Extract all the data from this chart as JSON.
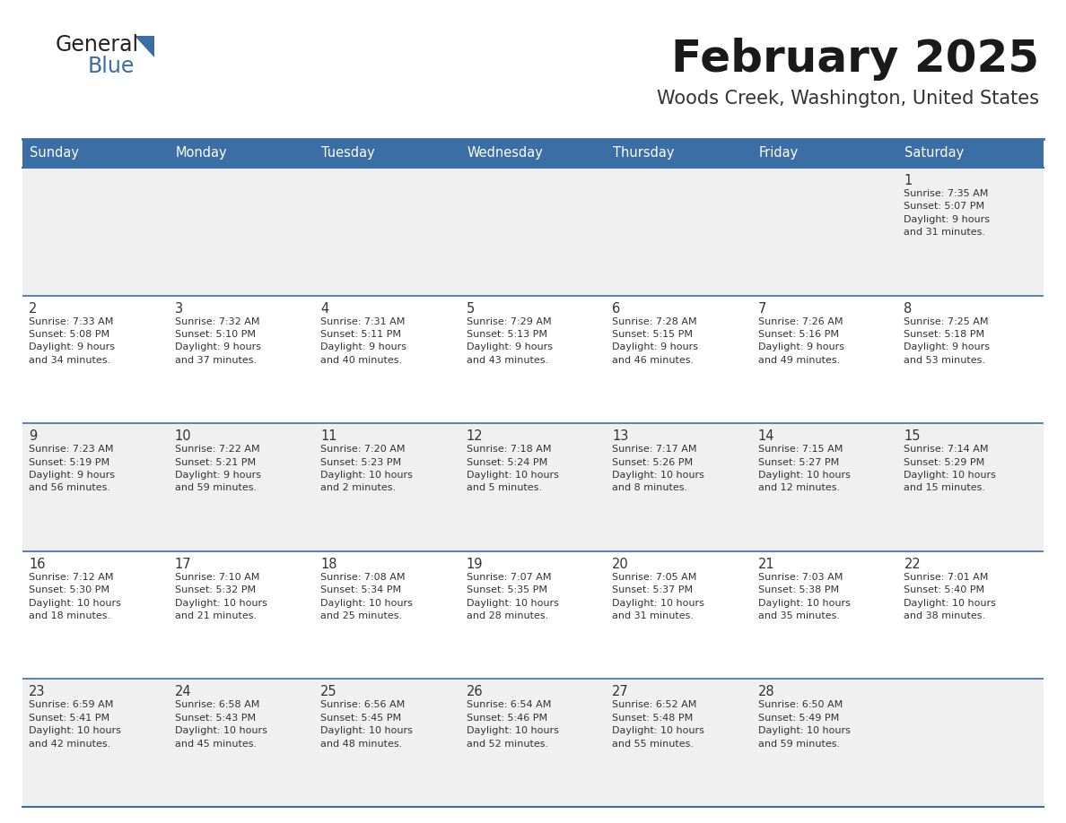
{
  "title": "February 2025",
  "subtitle": "Woods Creek, Washington, United States",
  "header_color": "#3a6ea5",
  "header_text_color": "#ffffff",
  "row_bg": [
    "#f0f0f0",
    "#ffffff",
    "#f0f0f0",
    "#ffffff",
    "#f0f0f0"
  ],
  "border_color": "#3a6ea5",
  "text_color": "#333333",
  "days_of_week": [
    "Sunday",
    "Monday",
    "Tuesday",
    "Wednesday",
    "Thursday",
    "Friday",
    "Saturday"
  ],
  "calendar_data": [
    [
      {
        "day": "",
        "info": ""
      },
      {
        "day": "",
        "info": ""
      },
      {
        "day": "",
        "info": ""
      },
      {
        "day": "",
        "info": ""
      },
      {
        "day": "",
        "info": ""
      },
      {
        "day": "",
        "info": ""
      },
      {
        "day": "1",
        "info": "Sunrise: 7:35 AM\nSunset: 5:07 PM\nDaylight: 9 hours\nand 31 minutes."
      }
    ],
    [
      {
        "day": "2",
        "info": "Sunrise: 7:33 AM\nSunset: 5:08 PM\nDaylight: 9 hours\nand 34 minutes."
      },
      {
        "day": "3",
        "info": "Sunrise: 7:32 AM\nSunset: 5:10 PM\nDaylight: 9 hours\nand 37 minutes."
      },
      {
        "day": "4",
        "info": "Sunrise: 7:31 AM\nSunset: 5:11 PM\nDaylight: 9 hours\nand 40 minutes."
      },
      {
        "day": "5",
        "info": "Sunrise: 7:29 AM\nSunset: 5:13 PM\nDaylight: 9 hours\nand 43 minutes."
      },
      {
        "day": "6",
        "info": "Sunrise: 7:28 AM\nSunset: 5:15 PM\nDaylight: 9 hours\nand 46 minutes."
      },
      {
        "day": "7",
        "info": "Sunrise: 7:26 AM\nSunset: 5:16 PM\nDaylight: 9 hours\nand 49 minutes."
      },
      {
        "day": "8",
        "info": "Sunrise: 7:25 AM\nSunset: 5:18 PM\nDaylight: 9 hours\nand 53 minutes."
      }
    ],
    [
      {
        "day": "9",
        "info": "Sunrise: 7:23 AM\nSunset: 5:19 PM\nDaylight: 9 hours\nand 56 minutes."
      },
      {
        "day": "10",
        "info": "Sunrise: 7:22 AM\nSunset: 5:21 PM\nDaylight: 9 hours\nand 59 minutes."
      },
      {
        "day": "11",
        "info": "Sunrise: 7:20 AM\nSunset: 5:23 PM\nDaylight: 10 hours\nand 2 minutes."
      },
      {
        "day": "12",
        "info": "Sunrise: 7:18 AM\nSunset: 5:24 PM\nDaylight: 10 hours\nand 5 minutes."
      },
      {
        "day": "13",
        "info": "Sunrise: 7:17 AM\nSunset: 5:26 PM\nDaylight: 10 hours\nand 8 minutes."
      },
      {
        "day": "14",
        "info": "Sunrise: 7:15 AM\nSunset: 5:27 PM\nDaylight: 10 hours\nand 12 minutes."
      },
      {
        "day": "15",
        "info": "Sunrise: 7:14 AM\nSunset: 5:29 PM\nDaylight: 10 hours\nand 15 minutes."
      }
    ],
    [
      {
        "day": "16",
        "info": "Sunrise: 7:12 AM\nSunset: 5:30 PM\nDaylight: 10 hours\nand 18 minutes."
      },
      {
        "day": "17",
        "info": "Sunrise: 7:10 AM\nSunset: 5:32 PM\nDaylight: 10 hours\nand 21 minutes."
      },
      {
        "day": "18",
        "info": "Sunrise: 7:08 AM\nSunset: 5:34 PM\nDaylight: 10 hours\nand 25 minutes."
      },
      {
        "day": "19",
        "info": "Sunrise: 7:07 AM\nSunset: 5:35 PM\nDaylight: 10 hours\nand 28 minutes."
      },
      {
        "day": "20",
        "info": "Sunrise: 7:05 AM\nSunset: 5:37 PM\nDaylight: 10 hours\nand 31 minutes."
      },
      {
        "day": "21",
        "info": "Sunrise: 7:03 AM\nSunset: 5:38 PM\nDaylight: 10 hours\nand 35 minutes."
      },
      {
        "day": "22",
        "info": "Sunrise: 7:01 AM\nSunset: 5:40 PM\nDaylight: 10 hours\nand 38 minutes."
      }
    ],
    [
      {
        "day": "23",
        "info": "Sunrise: 6:59 AM\nSunset: 5:41 PM\nDaylight: 10 hours\nand 42 minutes."
      },
      {
        "day": "24",
        "info": "Sunrise: 6:58 AM\nSunset: 5:43 PM\nDaylight: 10 hours\nand 45 minutes."
      },
      {
        "day": "25",
        "info": "Sunrise: 6:56 AM\nSunset: 5:45 PM\nDaylight: 10 hours\nand 48 minutes."
      },
      {
        "day": "26",
        "info": "Sunrise: 6:54 AM\nSunset: 5:46 PM\nDaylight: 10 hours\nand 52 minutes."
      },
      {
        "day": "27",
        "info": "Sunrise: 6:52 AM\nSunset: 5:48 PM\nDaylight: 10 hours\nand 55 minutes."
      },
      {
        "day": "28",
        "info": "Sunrise: 6:50 AM\nSunset: 5:49 PM\nDaylight: 10 hours\nand 59 minutes."
      },
      {
        "day": "",
        "info": ""
      }
    ]
  ],
  "logo_general_color": "#222222",
  "logo_blue_color": "#3a6ea5",
  "logo_triangle_color": "#3a6ea5"
}
